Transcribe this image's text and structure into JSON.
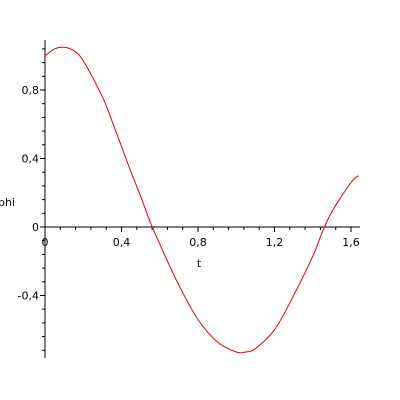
{
  "chart_data": {
    "type": "line",
    "title": "",
    "xlabel": "t",
    "ylabel": "phi",
    "xlim": [
      0,
      1.65
    ],
    "ylim": [
      -0.77,
      1.08
    ],
    "grid": false,
    "legend": "none",
    "x_ticks": [
      0,
      0.4,
      0.8,
      1.2,
      1.6
    ],
    "x_tick_labels": [
      "0",
      "0,4",
      "0,8",
      "1,2",
      "1,6"
    ],
    "y_ticks": [
      -0.4,
      0,
      0.4,
      0.8
    ],
    "y_tick_labels": [
      "-0,4",
      "0",
      "0,4",
      "0,8"
    ],
    "series": [
      {
        "color": "#e00000",
        "x": [
          0,
          0.05,
          0.1,
          0.15,
          0.2,
          0.3,
          0.35,
          0.4,
          0.45,
          0.5,
          0.55,
          0.6,
          0.7,
          0.8,
          0.9,
          1.0,
          1.05,
          1.1,
          1.2,
          1.3,
          1.4,
          1.45,
          1.5,
          1.6,
          1.64
        ],
        "y": [
          1.0,
          1.04,
          1.05,
          1.03,
          0.97,
          0.76,
          0.62,
          0.47,
          0.32,
          0.18,
          0.03,
          -0.1,
          -0.34,
          -0.54,
          -0.67,
          -0.73,
          -0.73,
          -0.71,
          -0.6,
          -0.4,
          -0.17,
          -0.03,
          0.09,
          0.26,
          0.3
        ]
      }
    ]
  }
}
